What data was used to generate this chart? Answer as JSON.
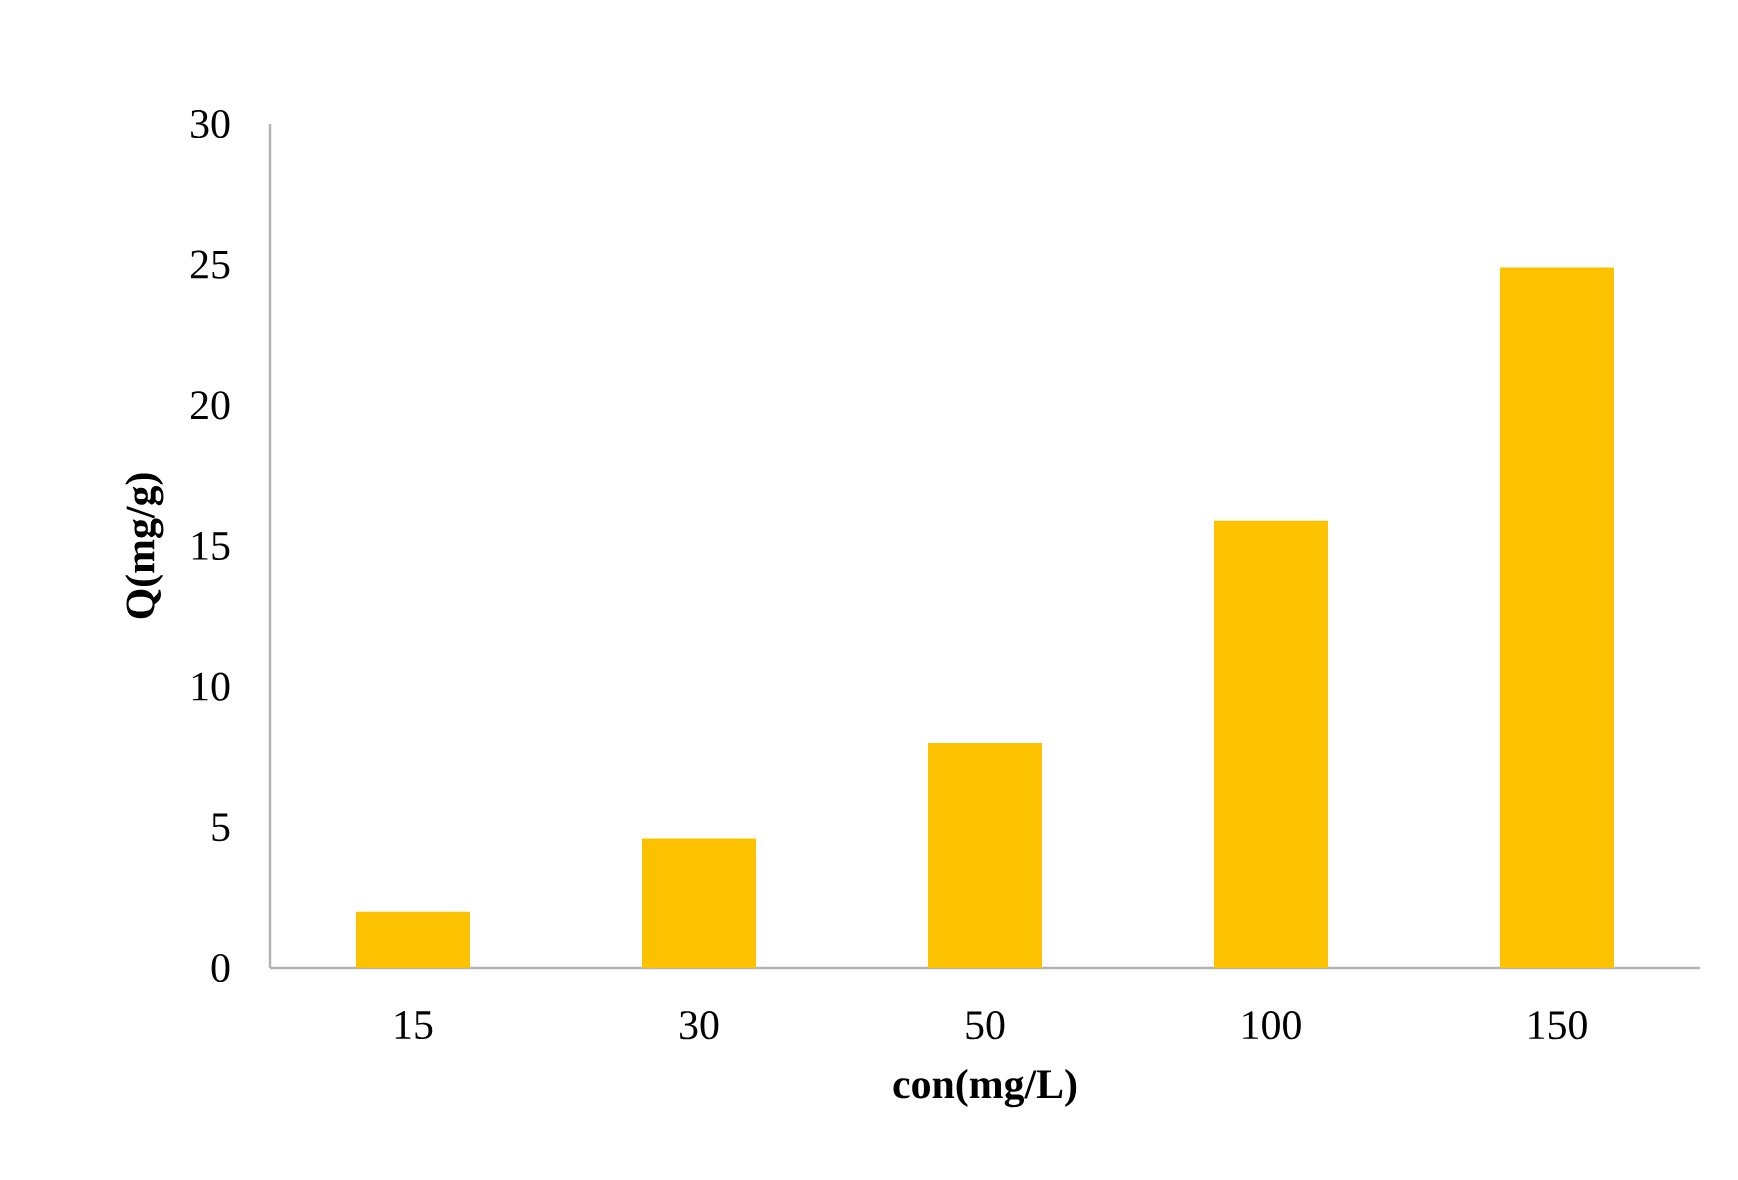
{
  "chart_data": {
    "type": "bar",
    "xlabel": "con(mg/L)",
    "ylabel": "Q(mg/g)",
    "categories": [
      "15",
      "30",
      "50",
      "100",
      "150"
    ],
    "values": [
      2.0,
      4.6,
      8.0,
      15.9,
      24.9
    ],
    "color": "#fcc200",
    "ylim": [
      0,
      30
    ],
    "yticks": [
      0,
      5,
      10,
      15,
      20,
      25,
      30
    ],
    "grid": false
  }
}
